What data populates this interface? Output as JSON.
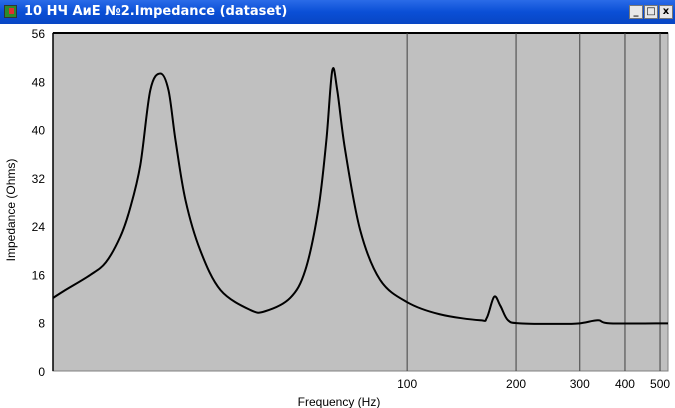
{
  "window": {
    "title": "10 НЧ АиЕ №2.Impedance (dataset)",
    "buttons": {
      "minimize": "_",
      "maximize": "□",
      "close": "x"
    }
  },
  "chart_data": {
    "type": "line",
    "title": "",
    "xlabel": "Frequency (Hz)",
    "ylabel": "Impedance (Ohms)",
    "xscale": "log",
    "xlim": [
      10.5,
      526
    ],
    "ylim": [
      0,
      56
    ],
    "yticks": [
      0,
      8,
      16,
      24,
      32,
      40,
      48,
      56
    ],
    "xticks": [
      100,
      200,
      300,
      400,
      500
    ],
    "grid": "vertical lines at x ticks",
    "plot_background": "#c0c0c0",
    "line_color": "#000000",
    "series": [
      {
        "x": [
          10.5,
          11.35,
          13.3,
          14.7,
          16.1,
          17.1,
          18.3,
          19.5,
          20.8,
          21.9,
          22.9,
          24.4,
          26.8,
          30.5,
          36.9,
          40.5,
          47.5,
          52.3,
          56.8,
          59.8,
          62.1,
          64.1,
          67.4,
          74.2,
          84.2,
          100,
          123,
          159,
          166,
          174,
          181,
          190,
          205,
          264,
          300,
          337,
          364,
          526
        ],
        "y": [
          12.1,
          13.4,
          15.9,
          18,
          22.2,
          26.7,
          34.1,
          46.5,
          49.3,
          46.5,
          38.2,
          28.3,
          20,
          13.4,
          10.1,
          9.9,
          12.1,
          16.7,
          26.7,
          38.2,
          49.8,
          46.5,
          36.6,
          23.3,
          15.1,
          11.4,
          9.4,
          8.4,
          8.8,
          12.3,
          10.8,
          8.4,
          7.9,
          7.8,
          7.9,
          8.4,
          7.9,
          7.9
        ]
      }
    ]
  }
}
